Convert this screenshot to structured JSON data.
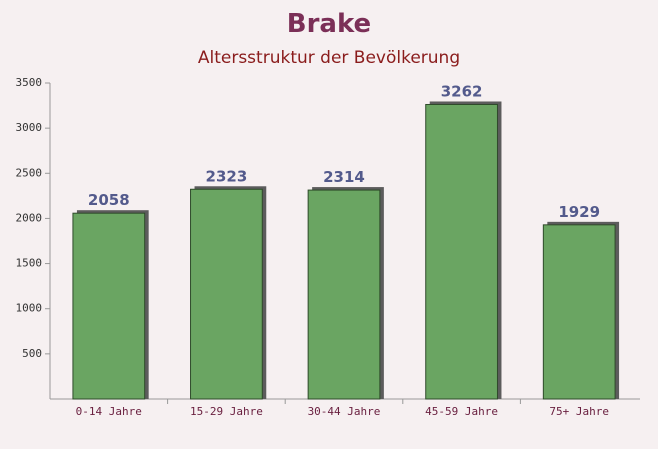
{
  "chart_data": {
    "type": "bar",
    "title": "Brake",
    "subtitle": "Altersstruktur der Bevölkerung",
    "categories": [
      "0-14 Jahre",
      "15-29 Jahre",
      "30-44 Jahre",
      "45-59 Jahre",
      "75+ Jahre"
    ],
    "values": [
      2058,
      2323,
      2314,
      3262,
      1929
    ],
    "color": "#6aa562",
    "ylim": [
      0,
      3500
    ],
    "yticks": [
      500,
      1000,
      1500,
      2000,
      2500,
      3000,
      3500
    ]
  }
}
